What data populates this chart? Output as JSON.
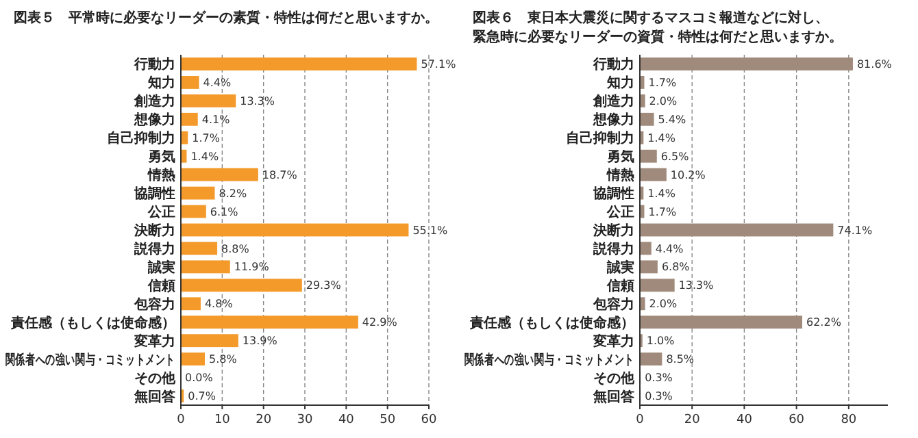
{
  "chart_data": [
    {
      "type": "bar",
      "orientation": "horizontal",
      "title": "図表５　平常時に必要なリーダーの素質・特性は何だと思いますか。",
      "categories": [
        "行動力",
        "知力",
        "創造力",
        "想像力",
        "自己抑制力",
        "勇気",
        "情熱",
        "協調性",
        "公正",
        "決断力",
        "説得力",
        "誠実",
        "信頼",
        "包容力",
        "責任感（もしくは使命感）",
        "変革力",
        "関係者への強い関与・コミットメント",
        "その他",
        "無回答"
      ],
      "values": [
        57.1,
        4.4,
        13.3,
        4.1,
        1.7,
        1.4,
        18.7,
        8.2,
        6.1,
        55.1,
        8.8,
        11.9,
        29.3,
        4.8,
        42.9,
        13.9,
        5.8,
        0.0,
        0.7
      ],
      "value_labels": [
        "57.1%",
        "4.4%",
        "13.3%",
        "4.1%",
        "1.7%",
        "1.4%",
        "18.7%",
        "8.2%",
        "6.1%",
        "55.1%",
        "8.8%",
        "11.9%",
        "29.3%",
        "4.8%",
        "42.9%",
        "13.9%",
        "5.8%",
        "0.0%",
        "0.7%"
      ],
      "color": "#f39a2b",
      "xlim": [
        0,
        60
      ],
      "xticks": [
        0,
        10,
        20,
        30,
        40,
        50,
        60
      ],
      "grid": "x"
    },
    {
      "type": "bar",
      "orientation": "horizontal",
      "title": "図表６　東日本大震災に関するマスコミ報道などに対し、緊急時に必要なリーダーの資質・特性は何だと思いますか。",
      "categories": [
        "行動力",
        "知力",
        "創造力",
        "想像力",
        "自己抑制力",
        "勇気",
        "情熱",
        "協調性",
        "公正",
        "決断力",
        "説得力",
        "誠実",
        "信頼",
        "包容力",
        "責任感（もしくは使命感）",
        "変革力",
        "関係者への強い関与・コミットメント",
        "その他",
        "無回答"
      ],
      "values": [
        81.6,
        1.7,
        2.0,
        5.4,
        1.4,
        6.5,
        10.2,
        1.4,
        1.7,
        74.1,
        4.4,
        6.8,
        13.3,
        2.0,
        62.2,
        1.0,
        8.5,
        0.3,
        0.3
      ],
      "value_labels": [
        "81.6%",
        "1.7%",
        "2.0%",
        "5.4%",
        "1.4%",
        "6.5%",
        "10.2%",
        "1.4%",
        "1.7%",
        "74.1%",
        "4.4%",
        "6.8%",
        "13.3%",
        "2.0%",
        "62.2%",
        "1.0%",
        "8.5%",
        "0.3%",
        "0.3%"
      ],
      "color": "#a08a7c",
      "xlim": [
        0,
        95
      ],
      "xticks": [
        0,
        20,
        40,
        60,
        80
      ],
      "grid": "x"
    }
  ]
}
